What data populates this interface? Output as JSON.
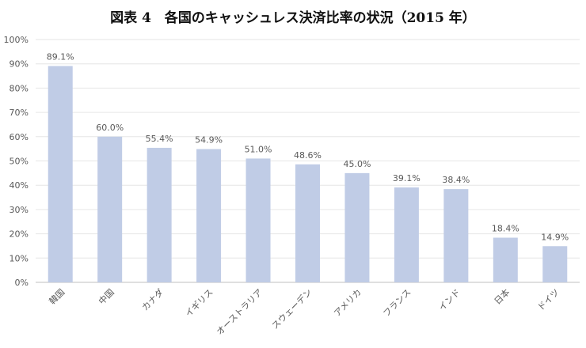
{
  "page_title": "図表 4　各国のキャッシュレス決済比率の状況（2015 年）",
  "colors": {
    "bar": "#c0cce6",
    "grid": "#e6e6e6",
    "text": "#595959"
  },
  "chart_data": {
    "type": "bar",
    "title": "図表 4　各国のキャッシュレス決済比率の状況（2015 年）",
    "xlabel": "",
    "ylabel": "",
    "ylim": [
      0,
      100
    ],
    "yticks": [
      "0%",
      "10%",
      "20%",
      "30%",
      "40%",
      "50%",
      "60%",
      "70%",
      "80%",
      "90%",
      "100%"
    ],
    "grid": true,
    "categories": [
      "韓国",
      "中国",
      "カナダ",
      "イギリス",
      "オーストラリア",
      "スウェーデン",
      "アメリカ",
      "フランス",
      "インド",
      "日本",
      "ドイツ"
    ],
    "values": [
      89.1,
      60.0,
      55.4,
      54.9,
      51.0,
      48.6,
      45.0,
      39.1,
      38.4,
      18.4,
      14.9
    ],
    "data_labels": [
      "89.1%",
      "60.0%",
      "55.4%",
      "54.9%",
      "51.0%",
      "48.6%",
      "45.0%",
      "39.1%",
      "38.4%",
      "18.4%",
      "14.9%"
    ]
  }
}
